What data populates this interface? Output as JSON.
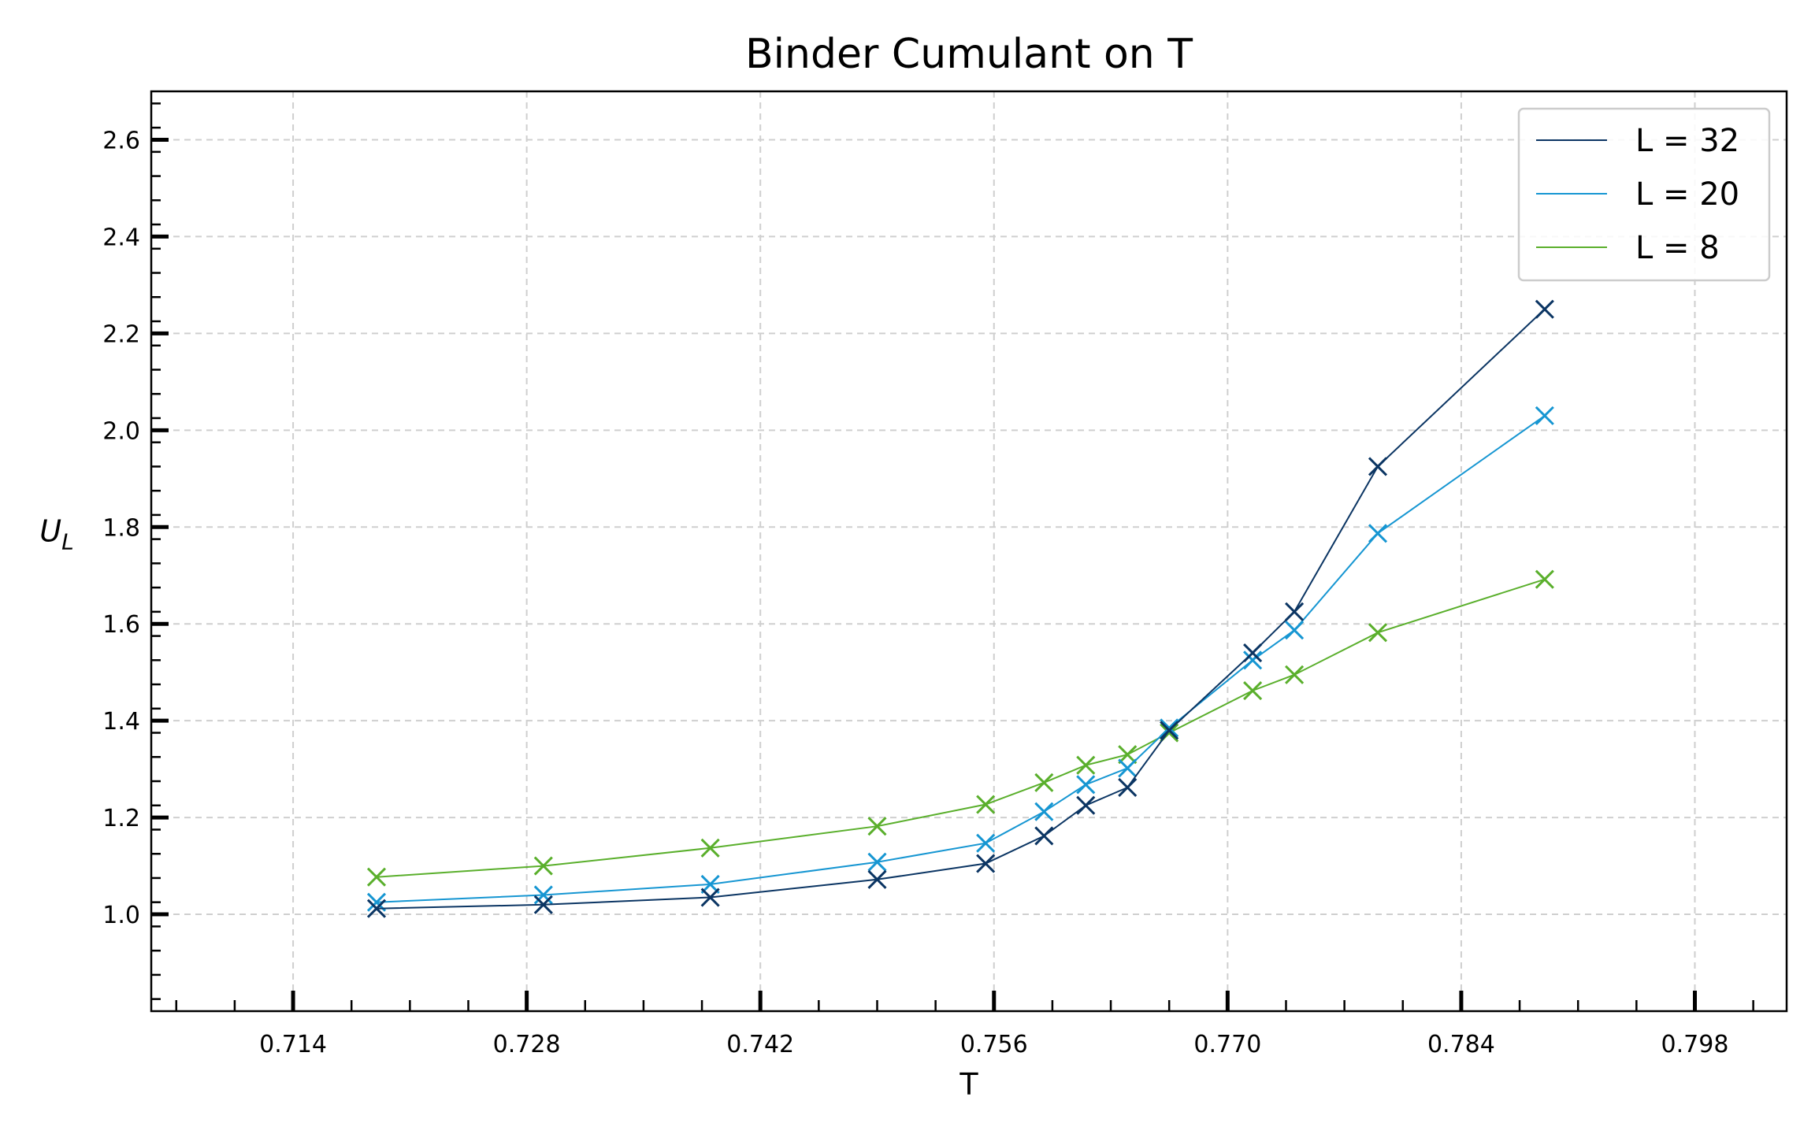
{
  "chart_data": {
    "type": "line",
    "title": "Binder Cumulant on T",
    "xlabel": "T",
    "ylabel": "U",
    "ylabel_subscript": "L",
    "xlim": [
      0.7055,
      0.8035
    ],
    "ylim": [
      0.8,
      2.7
    ],
    "xticks": [
      0.714,
      0.728,
      0.742,
      0.756,
      0.77,
      0.784,
      0.798
    ],
    "xtick_labels": [
      "0.714",
      "0.728",
      "0.742",
      "0.756",
      "0.770",
      "0.784",
      "0.798"
    ],
    "yticks": [
      1.0,
      1.2,
      1.4,
      1.6,
      1.8,
      2.0,
      2.2,
      2.4,
      2.6
    ],
    "ytick_labels": [
      "1.0",
      "1.2",
      "1.4",
      "1.6",
      "1.8",
      "2.0",
      "2.2",
      "2.4",
      "2.6"
    ],
    "grid": true,
    "legend_position": "top-right",
    "marker": "x",
    "x": [
      0.719,
      0.729,
      0.739,
      0.749,
      0.7555,
      0.759,
      0.7615,
      0.764,
      0.7665,
      0.7715,
      0.774,
      0.779,
      0.789
    ],
    "series": [
      {
        "name": "L = 32",
        "color": "#0b3563",
        "values": [
          1.012,
          1.02,
          1.035,
          1.072,
          1.105,
          1.162,
          1.225,
          1.262,
          1.38,
          1.54,
          1.625,
          1.925,
          2.25
        ]
      },
      {
        "name": "L = 20",
        "color": "#1696d2",
        "values": [
          1.025,
          1.04,
          1.062,
          1.108,
          1.147,
          1.212,
          1.268,
          1.302,
          1.385,
          1.525,
          1.587,
          1.787,
          2.03
        ]
      },
      {
        "name": "L = 8",
        "color": "#5aaf2c",
        "values": [
          1.077,
          1.1,
          1.137,
          1.182,
          1.227,
          1.272,
          1.308,
          1.33,
          1.375,
          1.462,
          1.495,
          1.582,
          1.692
        ]
      }
    ]
  }
}
